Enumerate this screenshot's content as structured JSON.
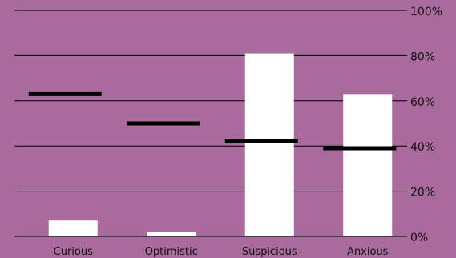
{
  "chart_data": {
    "type": "bar",
    "categories": [
      "Curious",
      "Optimistic",
      "Suspicious",
      "Anxious"
    ],
    "series": [
      {
        "name": "",
        "kind": "bar",
        "values": [
          7,
          2,
          81,
          63
        ]
      },
      {
        "name": "",
        "kind": "marker",
        "values": [
          63,
          50,
          42,
          39
        ]
      }
    ],
    "yticks": [
      "0%",
      "20%",
      "40%",
      "60%",
      "80%",
      "100%"
    ],
    "ytick_values": [
      0,
      20,
      40,
      60,
      80,
      100
    ],
    "ylim": [
      0,
      100
    ],
    "title": "",
    "xlabel": "",
    "ylabel": "",
    "axis_position": "right",
    "grid": true,
    "colors": {
      "background": "#a86b9c",
      "bar": "#ffffff",
      "marker": "#000000",
      "grid": "#000000",
      "text": "#111111"
    }
  }
}
